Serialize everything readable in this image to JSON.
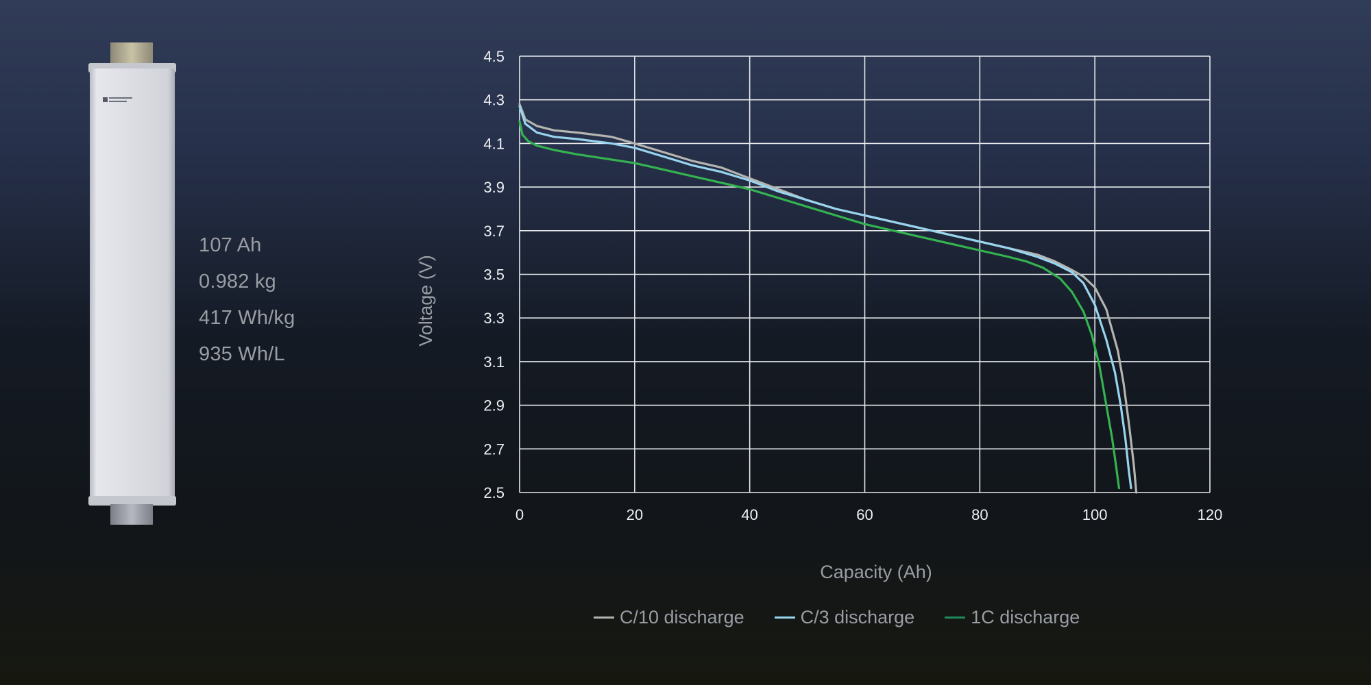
{
  "specs": {
    "capacity": "107 Ah",
    "mass": "0.982 kg",
    "gravimetric_energy": "417 Wh/kg",
    "volumetric_energy": "935 Wh/L"
  },
  "colors": {
    "grid": "#e6e8ec",
    "c10": "#b4b4b0",
    "c3": "#98d4ee",
    "c1": "#34b350",
    "legend_c1": "#1d8a5a"
  },
  "chart_data": {
    "type": "line",
    "title": "",
    "xlabel": "Capacity (Ah)",
    "ylabel": "Voltage (V)",
    "xlim": [
      0,
      120
    ],
    "ylim": [
      2.5,
      4.5
    ],
    "xticks": [
      0,
      20,
      40,
      60,
      80,
      100,
      120
    ],
    "yticks": [
      2.5,
      2.7,
      2.9,
      3.1,
      3.3,
      3.5,
      3.7,
      3.9,
      4.1,
      4.3,
      4.5
    ],
    "grid": true,
    "legend_position": "bottom-center",
    "series": [
      {
        "name": "C/10 discharge",
        "x": [
          0,
          1,
          3,
          6,
          10,
          16,
          20,
          25,
          30,
          35,
          40,
          45,
          50,
          55,
          60,
          65,
          70,
          75,
          80,
          85,
          90,
          93,
          96,
          98,
          100,
          102,
          104,
          105,
          106,
          106.8,
          107.2
        ],
        "y": [
          4.28,
          4.21,
          4.18,
          4.16,
          4.15,
          4.13,
          4.1,
          4.06,
          4.02,
          3.99,
          3.94,
          3.89,
          3.84,
          3.8,
          3.77,
          3.74,
          3.71,
          3.68,
          3.65,
          3.62,
          3.59,
          3.56,
          3.52,
          3.49,
          3.44,
          3.34,
          3.15,
          3.0,
          2.8,
          2.62,
          2.5
        ]
      },
      {
        "name": "C/3 discharge",
        "x": [
          0,
          1,
          3,
          6,
          10,
          16,
          20,
          25,
          30,
          35,
          40,
          45,
          50,
          55,
          60,
          65,
          70,
          75,
          80,
          85,
          90,
          93,
          96,
          98,
          100,
          102,
          103.5,
          104.5,
          105.3,
          105.9,
          106.3
        ],
        "y": [
          4.27,
          4.19,
          4.15,
          4.13,
          4.12,
          4.1,
          4.08,
          4.04,
          4.0,
          3.97,
          3.93,
          3.88,
          3.84,
          3.8,
          3.77,
          3.74,
          3.71,
          3.68,
          3.65,
          3.62,
          3.58,
          3.55,
          3.51,
          3.46,
          3.36,
          3.2,
          3.05,
          2.9,
          2.75,
          2.6,
          2.52
        ]
      },
      {
        "name": "1C discharge",
        "x": [
          0,
          0.5,
          1.5,
          3,
          6,
          10,
          15,
          20,
          25,
          30,
          35,
          40,
          45,
          50,
          55,
          60,
          65,
          70,
          75,
          80,
          85,
          88,
          91,
          94,
          96,
          98,
          99.5,
          100.8,
          102,
          103,
          103.7,
          104.2
        ],
        "y": [
          4.2,
          4.14,
          4.11,
          4.09,
          4.07,
          4.05,
          4.03,
          4.01,
          3.98,
          3.95,
          3.92,
          3.89,
          3.85,
          3.81,
          3.77,
          3.73,
          3.7,
          3.67,
          3.64,
          3.61,
          3.58,
          3.56,
          3.53,
          3.48,
          3.42,
          3.33,
          3.22,
          3.08,
          2.9,
          2.75,
          2.62,
          2.52
        ]
      }
    ]
  }
}
